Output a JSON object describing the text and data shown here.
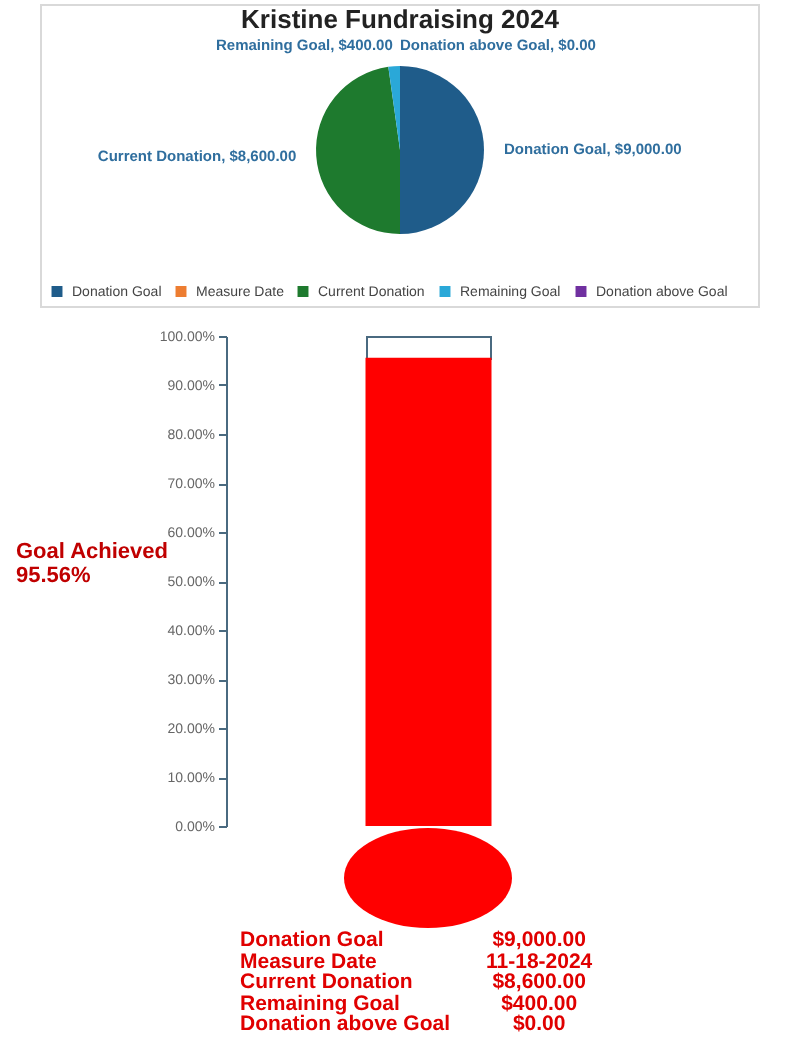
{
  "chart_data": [
    {
      "type": "pie",
      "title": "Kristine Fundraising 2024",
      "categories": [
        "Donation Goal",
        "Measure Date",
        "Current Donation",
        "Remaining Goal",
        "Donation above Goal"
      ],
      "values": [
        9000,
        null,
        8600,
        400,
        0
      ],
      "colors": [
        "#1f5c8a",
        "#ed7d31",
        "#1e7a2e",
        "#2aa8d8",
        "#7030a0"
      ],
      "value_labels": [
        "Donation Goal, $9,000.00",
        null,
        "Current Donation, $8,600.00",
        "Remaining Goal, $400.00",
        "Donation above Goal, $0.00"
      ],
      "legend": "bottom"
    },
    {
      "type": "bar",
      "categories": [
        null
      ],
      "values": [
        95.56
      ],
      "color": "#ff0000",
      "ylim": [
        0,
        100
      ],
      "yticks": [
        {
          "value": 0,
          "label": "0.00%"
        },
        {
          "value": 10,
          "label": "10.00%"
        },
        {
          "value": 20,
          "label": "20.00%"
        },
        {
          "value": 30,
          "label": "30.00%"
        },
        {
          "value": 40,
          "label": "40.00%"
        },
        {
          "value": 50,
          "label": "50.00%"
        },
        {
          "value": 60,
          "label": "60.00%"
        },
        {
          "value": 70,
          "label": "70.00%"
        },
        {
          "value": 80,
          "label": "80.00%"
        },
        {
          "value": 90,
          "label": "90.00%"
        },
        {
          "value": 100,
          "label": "100.00%"
        }
      ],
      "tick_labels": "y",
      "annotations": [
        "Goal Achieved",
        "95.56%"
      ]
    },
    {
      "type": "other",
      "annotations": [
        "Donation Goal",
        "$9,000.00",
        "Measure Date",
        "11-18-2024",
        "Current Donation",
        "$8,600.00",
        "Remaining  Goal",
        "$400.00",
        "Donation above Goal",
        "$0.00"
      ]
    }
  ]
}
